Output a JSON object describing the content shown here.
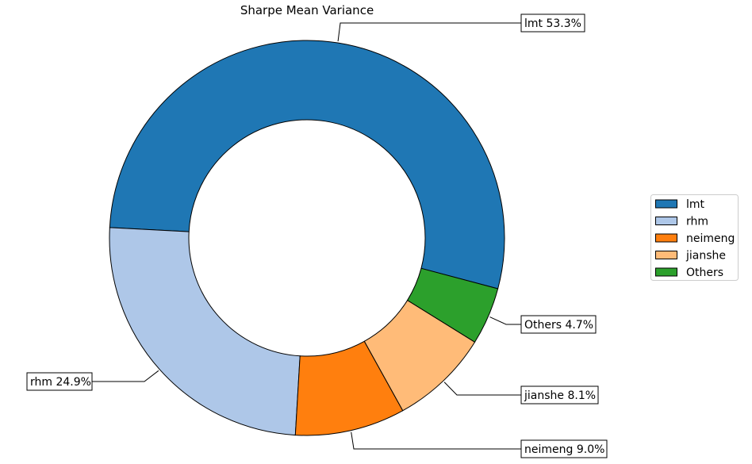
{
  "chart_data": {
    "type": "pie",
    "style": "donut",
    "title": "Sharpe Mean Variance",
    "categories": [
      "lmt",
      "rhm",
      "neimeng",
      "jianshe",
      "Others"
    ],
    "values": [
      53.3,
      24.9,
      9.0,
      8.1,
      4.7
    ],
    "labels": [
      "lmt 53.3%",
      "rhm 24.9%",
      "neimeng 9.0%",
      "jianshe 8.1%",
      "Others 4.7%"
    ],
    "colors": [
      "#1f77b4",
      "#aec7e8",
      "#ff7f0e",
      "#ffbb78",
      "#2ca02c"
    ],
    "legend": {
      "placement": "right",
      "entries": [
        "lmt",
        "rhm",
        "neimeng",
        "jianshe",
        "Others"
      ]
    }
  }
}
